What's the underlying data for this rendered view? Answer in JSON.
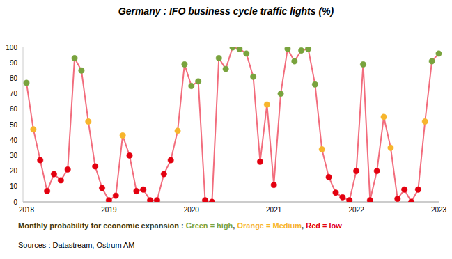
{
  "chart_data": {
    "type": "line",
    "title": "Germany : IFO business cycle traffic lights (%)",
    "categories": [
      "2018",
      null,
      null,
      null,
      null,
      null,
      null,
      null,
      null,
      null,
      null,
      null,
      "2019",
      null,
      null,
      null,
      null,
      null,
      null,
      null,
      null,
      null,
      null,
      null,
      "2020",
      null,
      null,
      null,
      null,
      null,
      null,
      null,
      null,
      null,
      null,
      null,
      "2021",
      null,
      null,
      null,
      null,
      null,
      null,
      null,
      null,
      null,
      null,
      null,
      "2022",
      null,
      null,
      null,
      null,
      null,
      null,
      null,
      null,
      null,
      null,
      null,
      "2023"
    ],
    "values": [
      77,
      47,
      27,
      7,
      18,
      14,
      21,
      93,
      85,
      52,
      23,
      9,
      1,
      4,
      43,
      30,
      7,
      8,
      1,
      1,
      18,
      27,
      46,
      89,
      75,
      78,
      1,
      0,
      93,
      86,
      100,
      99,
      96,
      81,
      26,
      63,
      11,
      70,
      99,
      91,
      98,
      99,
      76,
      34,
      16,
      6,
      3,
      1,
      20,
      89,
      1,
      20,
      55,
      35,
      2,
      8,
      0,
      8,
      52,
      91,
      96
    ],
    "color": "#f26d7d",
    "marker": "circle",
    "colors": [
      "#79a33d",
      "#f7b52c",
      "#e3000f",
      "#e3000f",
      "#e3000f",
      "#e3000f",
      "#e3000f",
      "#79a33d",
      "#79a33d",
      "#f7b52c",
      "#e3000f",
      "#e3000f",
      "#e3000f",
      "#e3000f",
      "#f7b52c",
      "#e3000f",
      "#e3000f",
      "#e3000f",
      "#e3000f",
      "#e3000f",
      "#e3000f",
      "#e3000f",
      "#f7b52c",
      "#79a33d",
      "#79a33d",
      "#79a33d",
      "#e3000f",
      "#e3000f",
      "#79a33d",
      "#79a33d",
      "#79a33d",
      "#79a33d",
      "#79a33d",
      "#79a33d",
      "#e3000f",
      "#f7b52c",
      "#e3000f",
      "#79a33d",
      "#79a33d",
      "#79a33d",
      "#79a33d",
      "#79a33d",
      "#79a33d",
      "#f7b52c",
      "#e3000f",
      "#e3000f",
      "#e3000f",
      "#e3000f",
      "#e3000f",
      "#79a33d",
      "#e3000f",
      "#e3000f",
      "#f7b52c",
      "#f7b52c",
      "#e3000f",
      "#e3000f",
      "#e3000f",
      "#e3000f",
      "#f7b52c",
      "#79a33d",
      "#79a33d"
    ],
    "ylim": [
      0,
      100
    ],
    "yticks": [
      0,
      10,
      20,
      30,
      40,
      50,
      60,
      70,
      80,
      90,
      100
    ],
    "grid": false,
    "note_parts": [
      {
        "text": "Monthly probability for economic expansion : ",
        "color": "#3a3a1a"
      },
      {
        "text": "Green = high",
        "color": "#79a33d"
      },
      {
        "text": ", ",
        "color": "#3a3a1a"
      },
      {
        "text": "Orange = Medium",
        "color": "#f7b52c"
      },
      {
        "text": ", ",
        "color": "#3a3a1a"
      },
      {
        "text": "Red = low",
        "color": "#e3000f"
      }
    ],
    "source": "Sources : Datastream, Ostrum AM"
  }
}
